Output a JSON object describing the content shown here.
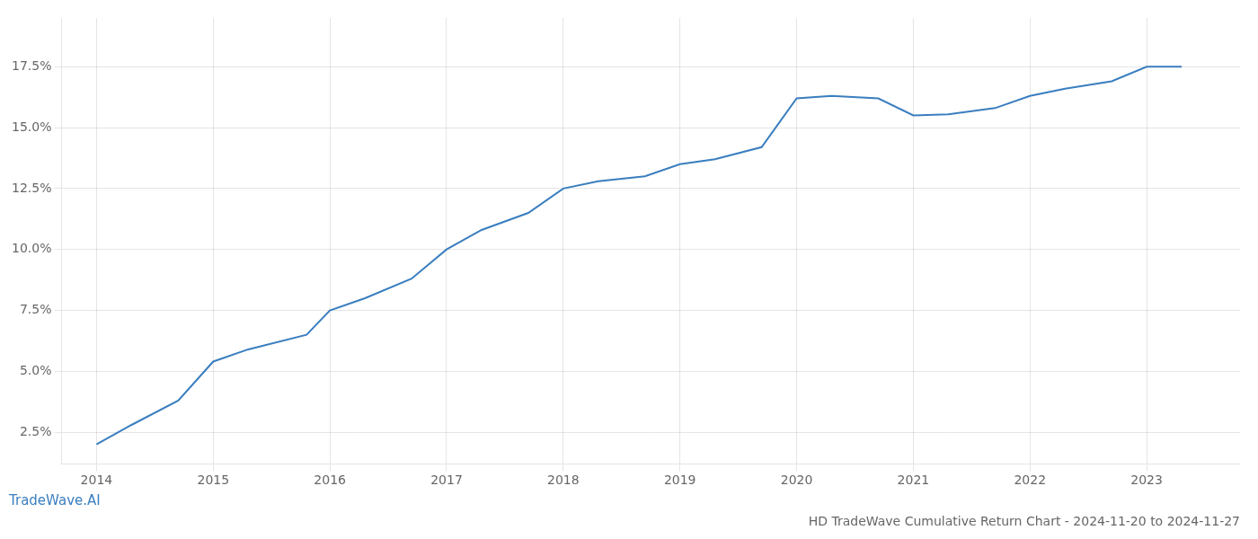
{
  "chart_data": {
    "type": "line",
    "title": "HD TradeWave Cumulative Return Chart - 2024-11-20 to 2024-11-27",
    "annotations": [
      "TradeWave.AI"
    ],
    "x": [
      2014,
      2014.3,
      2014.7,
      2015,
      2015.3,
      2015.8,
      2016,
      2016.3,
      2016.7,
      2017,
      2017.3,
      2017.7,
      2018,
      2018.3,
      2018.7,
      2019,
      2019.3,
      2019.7,
      2020,
      2020.3,
      2020.7,
      2021,
      2021.3,
      2021.7,
      2022,
      2022.3,
      2022.7,
      2023,
      2023.3
    ],
    "values": [
      2.0,
      2.8,
      3.8,
      5.4,
      5.9,
      6.5,
      7.5,
      8.0,
      8.8,
      10.0,
      10.8,
      11.5,
      12.5,
      12.8,
      13.0,
      13.5,
      13.7,
      14.2,
      16.2,
      16.3,
      16.2,
      15.5,
      15.55,
      15.8,
      16.3,
      16.6,
      16.9,
      17.5,
      17.5
    ],
    "color": "#3a7ebf",
    "xlim": [
      2013.7,
      2023.8
    ],
    "xticks": [
      2014,
      2015,
      2016,
      2017,
      2018,
      2019,
      2020,
      2021,
      2022,
      2023
    ],
    "ylim": [
      1.2,
      19.5
    ],
    "yticks": [
      {
        "value": 2.5,
        "label": "2.5%"
      },
      {
        "value": 5.0,
        "label": "5.0%"
      },
      {
        "value": 7.5,
        "label": "7.5%"
      },
      {
        "value": 10.0,
        "label": "10.0%"
      },
      {
        "value": 12.5,
        "label": "12.5%"
      },
      {
        "value": 15.0,
        "label": "15.0%"
      },
      {
        "value": 17.5,
        "label": "17.5%"
      }
    ],
    "grid": true
  }
}
